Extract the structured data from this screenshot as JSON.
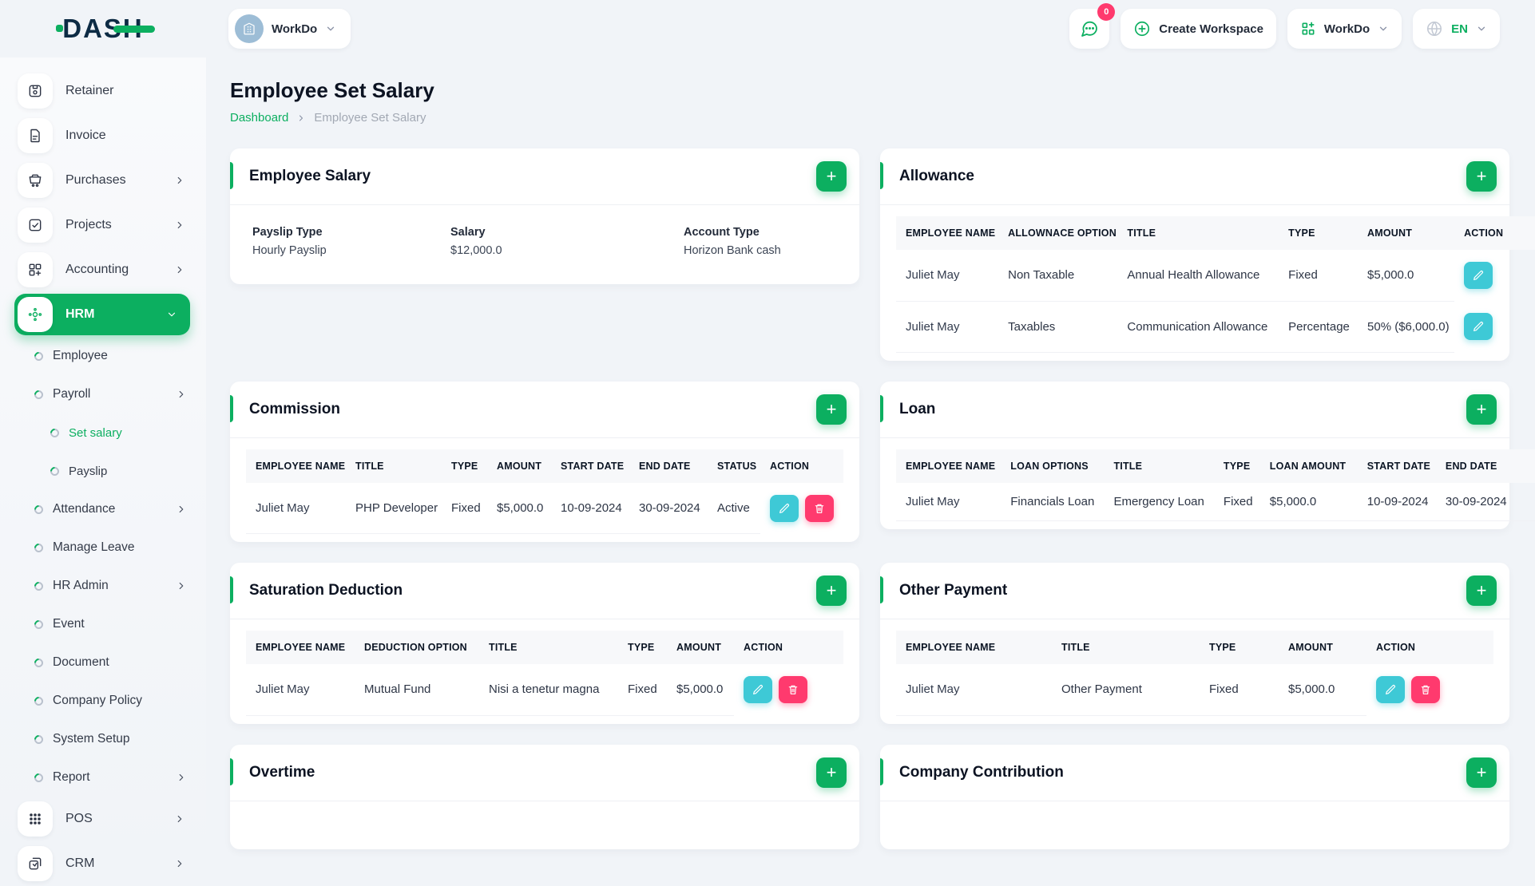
{
  "colors": {
    "primary": "#0caf60",
    "info": "#3ec9d6",
    "danger": "#ff3a6e",
    "dark": "#0d2b44"
  },
  "header": {
    "logo_text": "DASH",
    "workspace_switcher": {
      "label": "WorkDo",
      "avatar_icon": "building-icon"
    },
    "messages_badge": "0",
    "create_workspace_label": "Create Workspace",
    "workdo_menu_label": "WorkDo",
    "language": "EN"
  },
  "sidebar": {
    "nav": [
      {
        "label": "Retainer",
        "icon": "retainer-icon",
        "kind": "main"
      },
      {
        "label": "Invoice",
        "icon": "invoice-icon",
        "kind": "main"
      },
      {
        "label": "Purchases",
        "icon": "purchases-icon",
        "kind": "main",
        "chevron": "right"
      },
      {
        "label": "Projects",
        "icon": "projects-icon",
        "kind": "main",
        "chevron": "right"
      },
      {
        "label": "Accounting",
        "icon": "accounting-icon",
        "kind": "main",
        "chevron": "right"
      },
      {
        "label": "HRM",
        "icon": "hrm-icon",
        "kind": "main",
        "chevron": "down",
        "active": true
      },
      {
        "label": "Employee",
        "kind": "child"
      },
      {
        "label": "Payroll",
        "kind": "child",
        "chevron": "right"
      },
      {
        "label": "Set salary",
        "kind": "grand",
        "active": true
      },
      {
        "label": "Payslip",
        "kind": "grand"
      },
      {
        "label": "Attendance",
        "kind": "child",
        "chevron": "right"
      },
      {
        "label": "Manage Leave",
        "kind": "child"
      },
      {
        "label": "HR Admin",
        "kind": "child",
        "chevron": "right"
      },
      {
        "label": "Event",
        "kind": "child"
      },
      {
        "label": "Document",
        "kind": "child"
      },
      {
        "label": "Company Policy",
        "kind": "child"
      },
      {
        "label": "System Setup",
        "kind": "child"
      },
      {
        "label": "Report",
        "kind": "child",
        "chevron": "right"
      },
      {
        "label": "POS",
        "icon": "pos-icon",
        "kind": "main",
        "chevron": "right"
      },
      {
        "label": "CRM",
        "icon": "crm-icon",
        "kind": "main",
        "chevron": "right"
      }
    ]
  },
  "page": {
    "title": "Employee Set Salary",
    "breadcrumb": {
      "home": "Dashboard",
      "current": "Employee Set Salary"
    }
  },
  "cards": {
    "employee_salary": {
      "title": "Employee Salary",
      "fields": [
        {
          "label": "Payslip Type",
          "value": "Hourly Payslip"
        },
        {
          "label": "Salary",
          "value": "$12,000.0"
        },
        {
          "label": "Account Type",
          "value": "Horizon Bank cash"
        }
      ]
    },
    "allowance": {
      "title": "Allowance",
      "headers": [
        "EMPLOYEE NAME",
        "ALLOWNACE OPTION",
        "TITLE",
        "TYPE",
        "AMOUNT",
        "ACTION"
      ],
      "rows": [
        [
          "Juliet May",
          "Non Taxable",
          "Annual Health Allowance",
          "Fixed",
          "$5,000.0"
        ],
        [
          "Juliet May",
          "Taxables",
          "Communication Allowance",
          "Percentage",
          "50% ($6,000.0)"
        ]
      ],
      "row_actions": [
        "edit"
      ]
    },
    "commission": {
      "title": "Commission",
      "headers": [
        "EMPLOYEE NAME",
        "TITLE",
        "TYPE",
        "AMOUNT",
        "START DATE",
        "END DATE",
        "STATUS",
        "ACTION"
      ],
      "rows": [
        [
          "Juliet May",
          "PHP Developer",
          "Fixed",
          "$5,000.0",
          "10-09-2024",
          "30-09-2024",
          "Active"
        ]
      ],
      "row_actions": [
        "edit",
        "delete"
      ]
    },
    "loan": {
      "title": "Loan",
      "headers": [
        "EMPLOYEE NAME",
        "LOAN OPTIONS",
        "TITLE",
        "TYPE",
        "LOAN AMOUNT",
        "START DATE",
        "END DATE"
      ],
      "rows": [
        [
          "Juliet May",
          "Financials Loan",
          "Emergency Loan",
          "Fixed",
          "$5,000.0",
          "10-09-2024",
          "30-09-2024"
        ]
      ],
      "row_actions": []
    },
    "saturation_deduction": {
      "title": "Saturation Deduction",
      "headers": [
        "EMPLOYEE NAME",
        "DEDUCTION OPTION",
        "TITLE",
        "TYPE",
        "AMOUNT",
        "ACTION"
      ],
      "rows": [
        [
          "Juliet May",
          "Mutual Fund",
          "Nisi a tenetur magna",
          "Fixed",
          "$5,000.0"
        ]
      ],
      "row_actions": [
        "edit",
        "delete"
      ]
    },
    "other_payment": {
      "title": "Other Payment",
      "headers": [
        "EMPLOYEE NAME",
        "TITLE",
        "TYPE",
        "AMOUNT",
        "ACTION"
      ],
      "rows": [
        [
          "Juliet May",
          "Other Payment",
          "Fixed",
          "$5,000.0"
        ]
      ],
      "row_actions": [
        "edit",
        "delete"
      ]
    },
    "overtime": {
      "title": "Overtime"
    },
    "company_contribution": {
      "title": "Company Contribution"
    }
  }
}
